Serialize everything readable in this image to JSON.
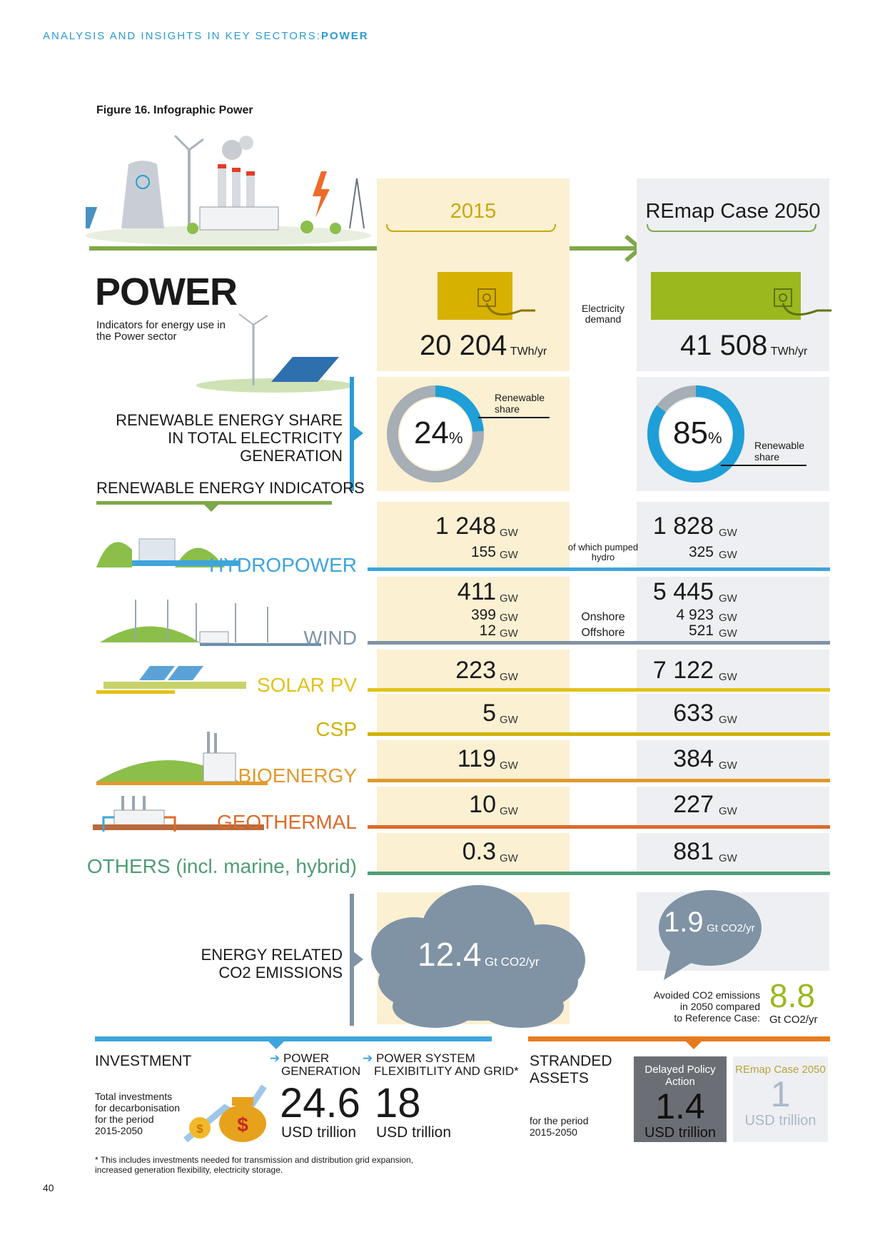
{
  "header": {
    "prefix": "ANALYSIS AND INSIGHTS IN KEY SECTORS:",
    "sector": "POWER"
  },
  "figure_title": "Figure 16. Infographic Power",
  "title": "POWER",
  "subtitle": "Indicators for energy use in the Power sector",
  "columns": {
    "y2015": "2015",
    "y2050": "REmap Case 2050"
  },
  "electricity": {
    "label": "Electricity demand",
    "v2015": "20 204",
    "v2050": "41 508",
    "unit": "TWh/yr"
  },
  "renewable_share": {
    "title_line1": "RENEWABLE ENERGY SHARE",
    "title_line2": "IN TOTAL ELECTRICITY GENERATION",
    "v2015": "24",
    "v2050": "85",
    "pct": "%",
    "share_2015": 0.24,
    "share_2050": 0.85,
    "label": "Renewable share"
  },
  "indicators_title": "RENEWABLE ENERGY INDICATORS",
  "indicators": [
    {
      "name": "HYDROPOWER",
      "color": "#3da5dc",
      "v2015": "1 248",
      "v2050": "1 828",
      "unit": "GW",
      "sub": [
        {
          "label": "of which pumped hydro",
          "v2015": "155",
          "v2050": "325"
        }
      ]
    },
    {
      "name": "WIND",
      "color": "#7f93a5",
      "v2015": "411",
      "v2050": "5 445",
      "unit": "GW",
      "sub": [
        {
          "label": "Onshore",
          "v2015": "399",
          "v2050": "4 923"
        },
        {
          "label": "Offshore",
          "v2015": "12",
          "v2050": "521"
        }
      ]
    },
    {
      "name": "SOLAR PV",
      "color": "#e3c21a",
      "v2015": "223",
      "v2050": "7 122",
      "unit": "GW"
    },
    {
      "name": "CSP",
      "color": "#d1b100",
      "v2015": "5",
      "v2050": "633",
      "unit": "GW"
    },
    {
      "name": "BIOENERGY",
      "color": "#e09a2c",
      "v2015": "119",
      "v2050": "384",
      "unit": "GW"
    },
    {
      "name": "GEOTHERMAL",
      "color": "#dd6a2a",
      "v2015": "10",
      "v2050": "227",
      "unit": "GW"
    },
    {
      "name": "OTHERS (incl. marine, hybrid)",
      "color": "#4f9d76",
      "v2015": "0.3",
      "v2050": "881",
      "unit": "GW"
    }
  ],
  "emissions": {
    "title_line1": "ENERGY RELATED",
    "title_line2": "CO2 EMISSIONS",
    "v2015": "12.4",
    "v2050": "1.9",
    "unit": "Gt CO2/yr",
    "avoided_line1": "Avoided CO2 emissions",
    "avoided_line2": "in 2050 compared",
    "avoided_line3": "to Reference Case:",
    "avoided_value": "8.8",
    "avoided_unit": "Gt CO2/yr"
  },
  "investment": {
    "title": "INVESTMENT",
    "desc_line1": "Total investments",
    "desc_line2": "for decarbonisation",
    "desc_line3": "for the period",
    "desc_line4": "2015-2050",
    "gen_line1": "POWER",
    "gen_line2": "GENERATION",
    "gen_value": "24.6",
    "grid_line1": "POWER SYSTEM",
    "grid_line2": "FLEXIBITLITY AND GRID*",
    "grid_value": "18",
    "unit": "USD trillion"
  },
  "stranded": {
    "title_line1": "STRANDED",
    "title_line2": "ASSETS",
    "period_line1": "for the period",
    "period_line2": "2015-2050",
    "delayed_label": "Delayed Policy Action",
    "delayed_value": "1.4",
    "remap_label": "REmap Case 2050",
    "remap_value": "1",
    "unit": "USD trillion"
  },
  "footnote_line1": "* This includes investments needed for transmission and distribution grid expansion,",
  "footnote_line2": "increased generation flexibility, electricity storage.",
  "page_number": "40"
}
